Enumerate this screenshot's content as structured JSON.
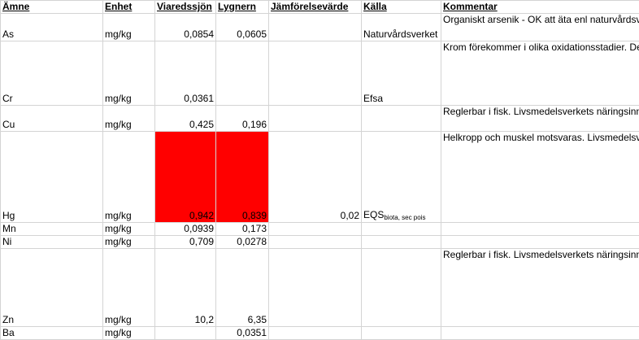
{
  "headers": {
    "amne": "Ämne",
    "enhet": "Enhet",
    "viareds": "Viaredssjön",
    "lygnern": "Lygnern",
    "jamfor": "Jämförelsevärde",
    "kalla": "Källa",
    "kommentar": "Kommentar"
  },
  "rows": [
    {
      "amne": "As",
      "enhet": "mg/kg",
      "viareds": "0,0854",
      "lygnern": "0,0605",
      "jamfor": "",
      "kalla": "Naturvårdsverket",
      "kalla_sub": "",
      "kommentar": "Organiskt arsenik - OK att äta enl naturvårdsverket."
    },
    {
      "amne": "Cr",
      "enhet": "mg/kg",
      "viareds": "0,0361",
      "lygnern": "",
      "jamfor": "",
      "kalla": "Efsa",
      "kalla_sub": "",
      "kommentar": "Krom förekommer i olika oxidationsstadier. Dessa föreningar kan ha olika toxiska effekter. EFSA fastställde tolerabelt dagligt intag för krom (III) till 300 µg/kg kroppsvikt och dag."
    },
    {
      "amne": "Cu",
      "enhet": "mg/kg",
      "viareds": "0,425",
      "lygnern": "0,196",
      "jamfor": "",
      "kalla": "",
      "kalla_sub": "",
      "kommentar": "Reglerbar i fisk.  Livsmedelsverkets näringsinnehåll i rå gädda är 0,3 mg/kg."
    },
    {
      "amne": "Hg",
      "enhet": "mg/kg",
      "viareds": "0,942",
      "lygnern": "0,839",
      "jamfor": "0,02",
      "kalla": "EQS",
      "kalla_sub": "biota, sec pois",
      "kommentar": "Helkropp och muskel motsvaras. Livsmedelsverkets gränsvärde 1 mg/kg vv. Det har uppskattats att kvicksilverhalten i enkilosgädda överskrider 1 mg/kg i cirka 10 000 insjöar i Sverige, vilket vittnar om att nedgången av kvicksilverhalterna i fisk går mycket långsamt."
    },
    {
      "amne": "Mn",
      "enhet": "mg/kg",
      "viareds": "0,0939",
      "lygnern": "0,173",
      "jamfor": "",
      "kalla": "",
      "kalla_sub": "",
      "kommentar": ""
    },
    {
      "amne": "Ni",
      "enhet": "mg/kg",
      "viareds": "0,709",
      "lygnern": "0,0278",
      "jamfor": "",
      "kalla": "",
      "kalla_sub": "",
      "kommentar": ""
    },
    {
      "amne": "Zn",
      "enhet": "mg/kg",
      "viareds": "10,2",
      "lygnern": "6,35",
      "jamfor": "",
      "kalla": "",
      "kalla_sub": "",
      "kommentar": "Reglerbar i fisk. Livsmedelsverkets näringsinnehåll i rå gädda är 7,8 mg/kg. I en publikation från 2006 rekommenderar EFSA en tolerabel högsta intagsnivå för zink som sträcker sig från 7 mg/dag för småbarn upp till 25 mg/dag för vuxna (10)."
    },
    {
      "amne": "Ba",
      "enhet": "mg/kg",
      "viareds": "",
      "lygnern": "0,0351",
      "jamfor": "",
      "kalla": "",
      "kalla_sub": "",
      "kommentar": ""
    }
  ],
  "highlight_color": "#ff0000"
}
